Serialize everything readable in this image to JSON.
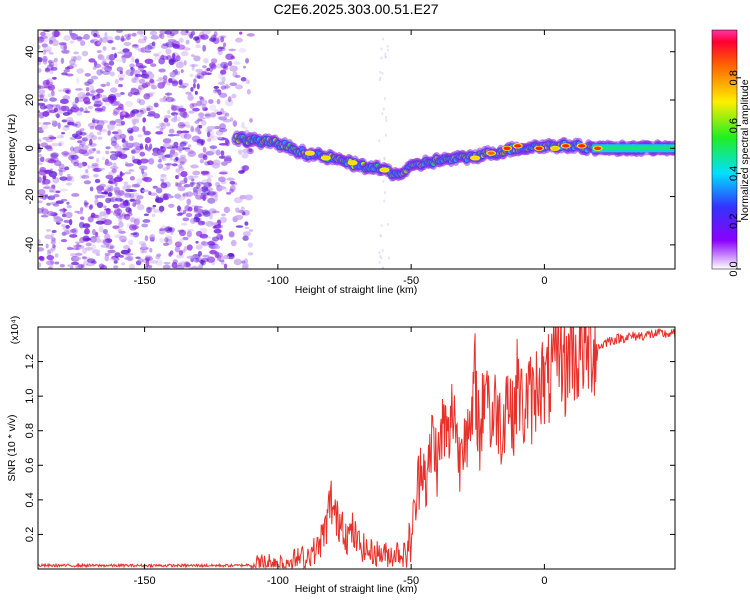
{
  "title": "C2E6.2025.303.00.51.E27",
  "chart_data": [
    {
      "type": "heatmap",
      "xlabel": "Height of straight line (km)",
      "ylabel": "Frequency (Hz)",
      "xlim": [
        -190,
        49
      ],
      "ylim": [
        -50,
        49
      ],
      "xticks": [
        -150,
        -100,
        -50,
        0
      ],
      "yticks": [
        -40,
        -20,
        0,
        20,
        40
      ],
      "colorbar": {
        "label": "Normalized spectral amplitude",
        "range": [
          0,
          1
        ],
        "ticks": [
          "0.0",
          "0.2",
          "0.4",
          "0.6",
          "0.8"
        ]
      },
      "ridge": {
        "description_points_x": [
          -114,
          -100,
          -90,
          -80,
          -70,
          -60,
          -55,
          -50,
          -45,
          -40,
          -30,
          -20,
          -10,
          0,
          10,
          20,
          30,
          49
        ],
        "frequency_hz": [
          4,
          2,
          -2,
          -4,
          -7,
          -9,
          -11,
          -8,
          -6,
          -5,
          -4,
          -2,
          0,
          1,
          1,
          0,
          0,
          0
        ]
      }
    },
    {
      "type": "line",
      "xlabel": "Height of straight line (km)",
      "ylabel": "SNR (10 * v/v)",
      "yscale_label": "(x10⁴)",
      "xlim": [
        -190,
        49
      ],
      "ylim": [
        0,
        1.4
      ],
      "xticks": [
        -150,
        -100,
        -50,
        0
      ],
      "yticks": [
        "0.2",
        "0.4",
        "0.6",
        "0.8",
        "1.0",
        "1.2"
      ],
      "series": [
        {
          "name": "SNR",
          "color": "#e8302a",
          "x": [
            -190,
            -170,
            -150,
            -130,
            -115,
            -105,
            -100,
            -95,
            -90,
            -85,
            -82,
            -80,
            -78,
            -76,
            -74,
            -72,
            -70,
            -66,
            -62,
            -58,
            -55,
            -52,
            -50,
            -48,
            -46,
            -44,
            -42,
            -40,
            -38,
            -36,
            -34,
            -32,
            -30,
            -28,
            -26,
            -24,
            -22,
            -20,
            -18,
            -16,
            -14,
            -12,
            -10,
            -8,
            -6,
            -4,
            -2,
            0,
            2,
            4,
            6,
            8,
            10,
            12,
            14,
            16,
            18,
            20,
            24,
            30,
            36,
            42,
            49
          ],
          "y": [
            0.02,
            0.02,
            0.02,
            0.02,
            0.02,
            0.03,
            0.04,
            0.05,
            0.07,
            0.12,
            0.24,
            0.4,
            0.27,
            0.3,
            0.18,
            0.22,
            0.15,
            0.1,
            0.09,
            0.08,
            0.1,
            0.08,
            0.18,
            0.4,
            0.68,
            0.48,
            0.78,
            0.6,
            0.85,
            0.72,
            0.98,
            0.62,
            0.88,
            0.7,
            1.1,
            0.72,
            1.2,
            0.82,
            0.95,
            0.8,
            1.05,
            0.85,
            1.1,
            0.9,
            1.0,
            0.96,
            1.15,
            1.05,
            1.1,
            1.18,
            1.3,
            1.12,
            1.32,
            1.2,
            1.3,
            1.24,
            1.3,
            1.28,
            1.32,
            1.34,
            1.35,
            1.36,
            1.36
          ]
        }
      ]
    }
  ]
}
